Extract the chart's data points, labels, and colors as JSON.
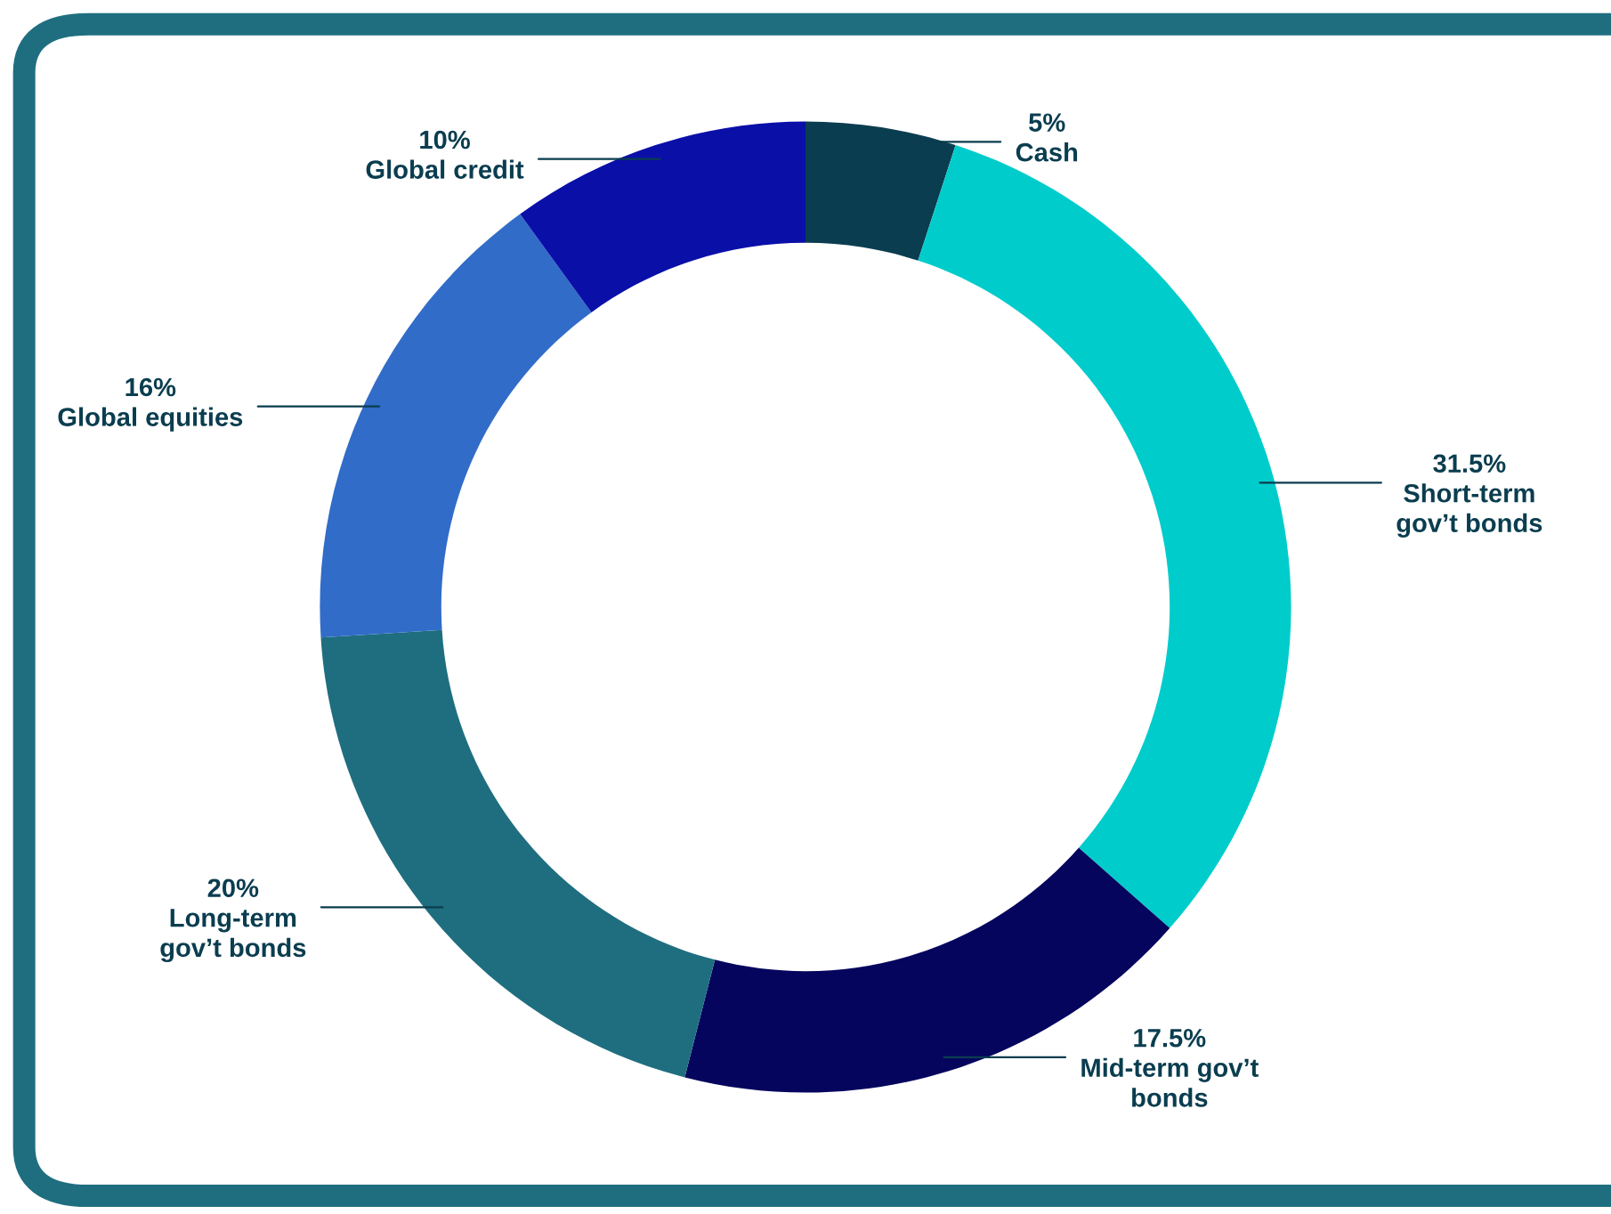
{
  "chart_data": {
    "type": "donut",
    "categories": [
      "Cash",
      "Short-term\ngov’t bonds",
      "Mid-term gov’t\nbonds",
      "Long-term\ngov’t bonds",
      "Global equities",
      "Global credit"
    ],
    "values": [
      5,
      31.5,
      17.5,
      20,
      16,
      10
    ],
    "value_labels": [
      "5%",
      "31.5%",
      "17.5%",
      "20%",
      "16%",
      "10%"
    ],
    "colors": [
      "#0a3d4f",
      "#00cccc",
      "#05055e",
      "#1f6e80",
      "#316cc8",
      "#0a0fa8"
    ],
    "legend": false
  }
}
